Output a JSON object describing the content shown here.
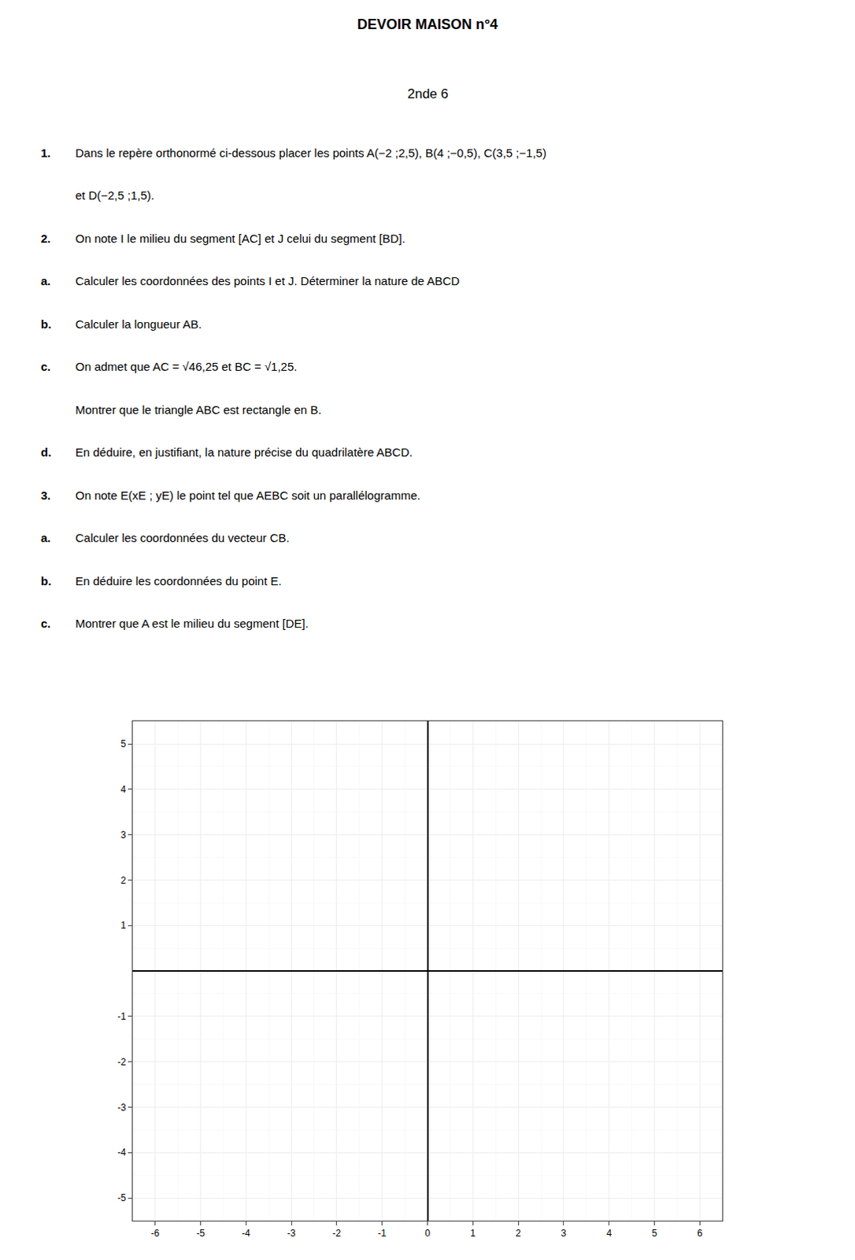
{
  "chart_data": {
    "type": "scatter",
    "title": "DEVOIR MAISON n°4",
    "subtitle": "2nde 6",
    "xlim": [
      -6.5,
      6.5
    ],
    "ylim": [
      -5.5,
      5.5
    ],
    "xticks": [
      -6,
      -5,
      -4,
      -3,
      -2,
      -1,
      0,
      1,
      2,
      3,
      4,
      5,
      6
    ],
    "yticks": [
      -5,
      -4,
      -3,
      -2,
      -1,
      1,
      2,
      3,
      4,
      5
    ],
    "grid": true,
    "annotations": [
      [
        "1.",
        "Dans le repère orthonormé ci-dessous placer les points A(−2 ;2,5), B(4 ;−0,5), C(3,5 ;−1,5)"
      ],
      [
        null,
        "et D(−2,5 ;1,5)."
      ],
      [
        "2.",
        "On note I le milieu du segment [AC] et J celui du segment [BD]."
      ],
      [
        "a.",
        "Calculer les coordonnées des points I et J. Déterminer la nature de ABCD"
      ],
      [
        "b.",
        "Calculer la longueur AB."
      ],
      [
        "c.",
        "On admet que AC = √46,25 et BC = √1,25."
      ],
      [
        null,
        "Montrer que le triangle ABC est rectangle en B."
      ],
      [
        "d.",
        "En déduire, en justifiant, la nature précise du quadrilatère ABCD."
      ],
      [
        "3.",
        "On note E(xE ; yE) le point tel que AEBC soit un parallélogramme."
      ],
      [
        "a.",
        "Calculer les coordonnées du vecteur CB."
      ],
      [
        "b.",
        "En déduire les coordonnées du point E."
      ],
      [
        "c.",
        "Montrer que A est le milieu du segment [DE]."
      ]
    ]
  }
}
